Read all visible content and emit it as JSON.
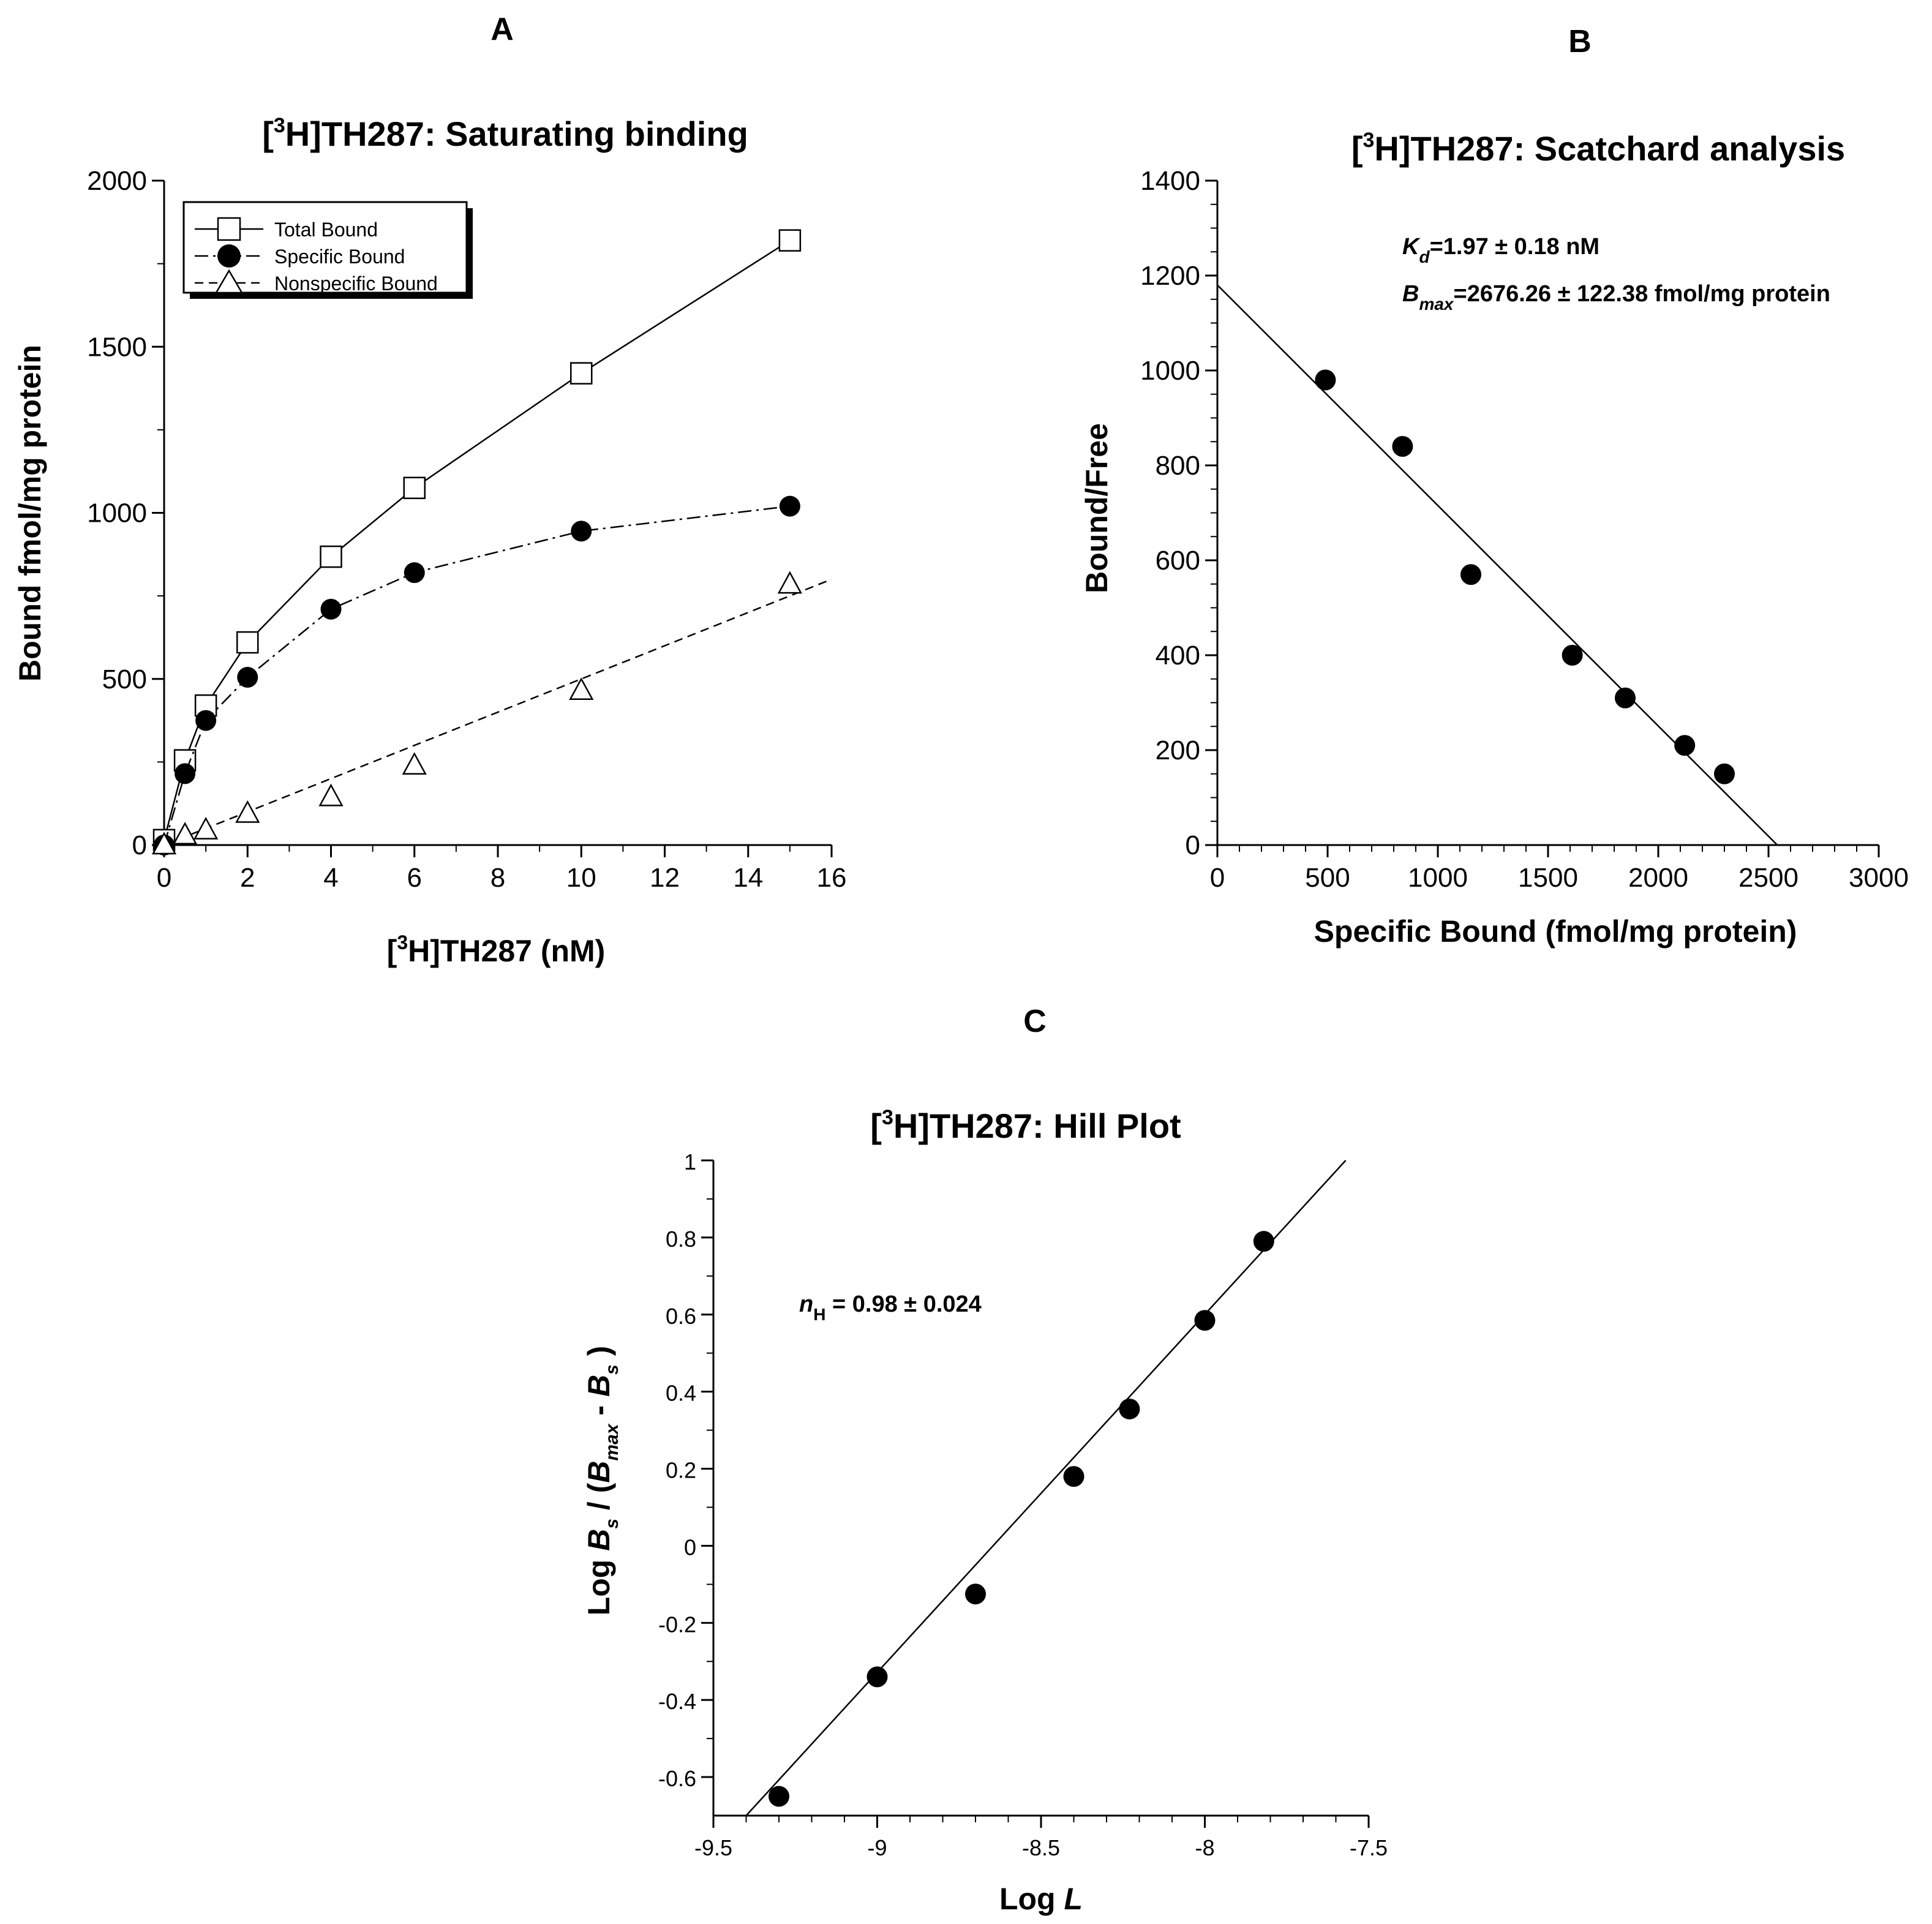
{
  "chart_data": [
    {
      "id": "A",
      "panel_label": "A",
      "type": "line",
      "title_pre": "[",
      "title_sup": "3",
      "title_post": "H]TH287: Saturating binding",
      "xlabel_pre": "[",
      "xlabel_sup": "3",
      "xlabel_post": "H]TH287 (nM)",
      "ylabel": "Bound fmol/mg protein",
      "xlim": [
        0,
        16
      ],
      "ylim": [
        0,
        2000
      ],
      "xticks": [
        0,
        2,
        4,
        6,
        8,
        10,
        12,
        14,
        16
      ],
      "yticks": [
        0,
        500,
        1000,
        1500,
        2000
      ],
      "legend_position": "top-left",
      "series": [
        {
          "name": "Total Bound",
          "marker": "open-square",
          "line": "solid",
          "x": [
            0,
            0.5,
            1,
            2,
            4,
            6,
            10,
            15
          ],
          "y": [
            15,
            255,
            420,
            610,
            868,
            1075,
            1420,
            1820
          ]
        },
        {
          "name": "Specific Bound",
          "marker": "filled-circle",
          "line": "dash-dot",
          "x": [
            0,
            0.5,
            1,
            2,
            4,
            6,
            10,
            15
          ],
          "y": [
            0,
            215,
            375,
            505,
            710,
            820,
            945,
            1020
          ]
        },
        {
          "name": "Nonspecific Bound",
          "marker": "open-triangle",
          "line": "dashed",
          "x": [
            0,
            0.5,
            1,
            2,
            4,
            6,
            10,
            15
          ],
          "y": [
            0,
            30,
            45,
            95,
            145,
            240,
            465,
            785
          ],
          "fit_x": [
            0,
            16
          ],
          "fit_y": [
            0,
            800
          ]
        }
      ]
    },
    {
      "id": "B",
      "panel_label": "B",
      "type": "scatter",
      "title_pre": "[",
      "title_sup": "3",
      "title_post": "H]TH287: Scatchard analysis",
      "xlabel": "Specific Bound (fmol/mg protein)",
      "ylabel": "Bound/Free",
      "xlim": [
        0,
        3000
      ],
      "ylim": [
        0,
        1400
      ],
      "xticks": [
        0,
        500,
        1000,
        1500,
        2000,
        2500,
        3000
      ],
      "yticks": [
        0,
        200,
        400,
        600,
        800,
        1000,
        1200,
        1400
      ],
      "annotations": {
        "kd_sym": "K",
        "kd_sub": "d",
        "kd_text": "=1.97 ± 0.18 nM",
        "bmax_sym": "B",
        "bmax_sub": "max",
        "bmax_text": "=2676.26 ± 122.38 fmol/mg protein"
      },
      "series": [
        {
          "name": "Scatchard points",
          "marker": "filled-circle",
          "x": [
            490,
            840,
            1150,
            1610,
            1850,
            2120,
            2300
          ],
          "y": [
            980,
            840,
            570,
            400,
            310,
            210,
            150
          ]
        }
      ],
      "fit": {
        "x": [
          0,
          2540
        ],
        "y": [
          1180,
          0
        ]
      }
    },
    {
      "id": "C",
      "panel_label": "C",
      "type": "scatter",
      "title_pre": "[",
      "title_sup": "3",
      "title_post": "H]TH287: Hill Plot",
      "xlabel_pre": "Log ",
      "xlabel_it": "L",
      "ylabel": "Log Bs / (Bmax - Bs )",
      "xlim": [
        -9.5,
        -7.5
      ],
      "ylim": [
        -0.7,
        1
      ],
      "xticks": [
        -9.5,
        -9,
        -8.5,
        -8,
        -7.5
      ],
      "yticks": [
        -0.6,
        -0.4,
        -0.2,
        0,
        0.2,
        0.4,
        0.6,
        0.8,
        1
      ],
      "annotations": {
        "nh_sym": "n",
        "nh_sub": "H",
        "nh_text": " = 0.98 ± 0.024"
      },
      "series": [
        {
          "name": "Hill points",
          "marker": "filled-circle",
          "x": [
            -9.3,
            -9.0,
            -8.7,
            -8.4,
            -8.23,
            -8.0,
            -7.82
          ],
          "y": [
            -0.65,
            -0.34,
            -0.125,
            0.18,
            0.355,
            0.585,
            0.79
          ]
        }
      ],
      "fit": {
        "x": [
          -9.4,
          -7.57
        ],
        "y": [
          -0.7,
          1.0
        ]
      }
    }
  ]
}
